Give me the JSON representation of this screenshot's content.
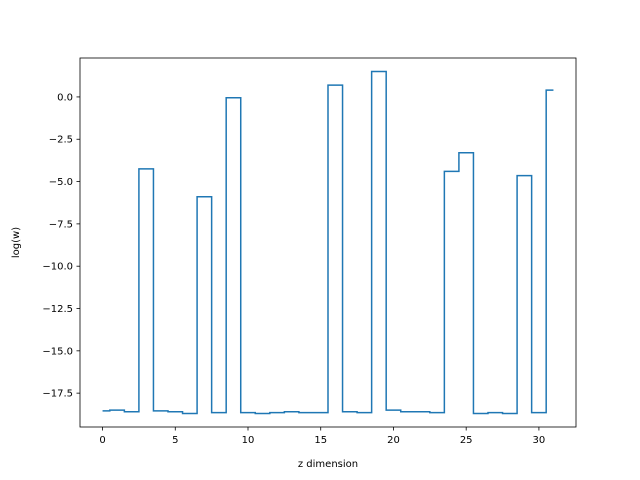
{
  "chart_data": {
    "type": "line",
    "drawstyle": "steps-mid",
    "title": "",
    "xlabel": "z dimension",
    "ylabel": "log(w)",
    "xlim": [
      -1.55,
      32.55
    ],
    "ylim": [
      -19.5,
      2.3
    ],
    "grid": false,
    "legend": "none",
    "xticks": [
      0,
      5,
      10,
      15,
      20,
      25,
      30
    ],
    "xtick_labels": [
      "0",
      "5",
      "10",
      "15",
      "20",
      "25",
      "30"
    ],
    "yticks": [
      0.0,
      -2.5,
      -5.0,
      -7.5,
      -10.0,
      -12.5,
      -15.0,
      -17.5
    ],
    "ytick_labels": [
      "0.0",
      "−2.5",
      "−5.0",
      "−7.5",
      "−10.0",
      "−12.5",
      "−15.0",
      "−17.5"
    ],
    "series": [
      {
        "color": "#1f77b4",
        "x": [
          0,
          1,
          2,
          3,
          4,
          5,
          6,
          7,
          8,
          9,
          10,
          11,
          12,
          13,
          14,
          15,
          16,
          17,
          18,
          19,
          20,
          21,
          22,
          23,
          24,
          25,
          26,
          27,
          28,
          29,
          30,
          31
        ],
        "y": [
          -18.55,
          -18.5,
          -18.6,
          -4.25,
          -18.55,
          -18.6,
          -18.7,
          -5.9,
          -18.65,
          -0.05,
          -18.65,
          -18.7,
          -18.65,
          -18.6,
          -18.65,
          -18.65,
          0.7,
          -18.6,
          -18.65,
          1.5,
          -18.5,
          -18.6,
          -18.6,
          -18.65,
          -4.4,
          -3.3,
          -18.7,
          -18.65,
          -18.7,
          -4.65,
          -18.65,
          0.4
        ]
      }
    ]
  }
}
